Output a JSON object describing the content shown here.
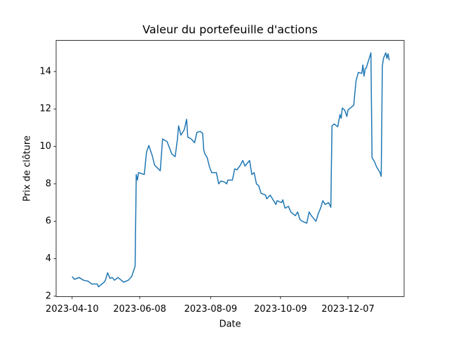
{
  "chart_data": {
    "type": "line",
    "title": "Valeur du portefeuille d'actions",
    "x_label": "Date",
    "y_label": "Prix de clôture",
    "color": "#1f77b4",
    "x": [
      "2023-04-10",
      "2023-04-12",
      "2023-04-16",
      "2023-04-20",
      "2023-04-24",
      "2023-04-27",
      "2023-05-02",
      "2023-05-03",
      "2023-05-08",
      "2023-05-09",
      "2023-05-11",
      "2023-05-13",
      "2023-05-15",
      "2023-05-17",
      "2023-05-20",
      "2023-05-25",
      "2023-05-29",
      "2023-06-01",
      "2023-06-04",
      "2023-06-05",
      "2023-06-06",
      "2023-06-07",
      "2023-06-12",
      "2023-06-14",
      "2023-06-16",
      "2023-06-19",
      "2023-06-21",
      "2023-06-26",
      "2023-06-28",
      "2023-07-02",
      "2023-07-06",
      "2023-07-09",
      "2023-07-11",
      "2023-07-12",
      "2023-07-14",
      "2023-07-17",
      "2023-07-19",
      "2023-07-20",
      "2023-07-23",
      "2023-07-26",
      "2023-07-28",
      "2023-07-31",
      "2023-08-02",
      "2023-08-03",
      "2023-08-04",
      "2023-08-06",
      "2023-08-08",
      "2023-08-10",
      "2023-08-14",
      "2023-08-16",
      "2023-08-18",
      "2023-08-21",
      "2023-08-23",
      "2023-08-24",
      "2023-08-28",
      "2023-08-30",
      "2023-09-01",
      "2023-09-04",
      "2023-09-06",
      "2023-09-08",
      "2023-09-10",
      "2023-09-12",
      "2023-09-14",
      "2023-09-16",
      "2023-09-18",
      "2023-09-20",
      "2023-09-22",
      "2023-09-26",
      "2023-09-27",
      "2023-09-30",
      "2023-10-02",
      "2023-10-05",
      "2023-10-06",
      "2023-10-10",
      "2023-10-11",
      "2023-10-13",
      "2023-10-16",
      "2023-10-18",
      "2023-10-22",
      "2023-10-24",
      "2023-10-26",
      "2023-10-28",
      "2023-11-01",
      "2023-11-03",
      "2023-11-05",
      "2023-11-09",
      "2023-11-11",
      "2023-11-13",
      "2023-11-15",
      "2023-11-17",
      "2023-11-20",
      "2023-11-22",
      "2023-11-23",
      "2023-11-25",
      "2023-11-28",
      "2023-11-30",
      "2023-12-01",
      "2023-12-02",
      "2023-12-04",
      "2023-12-06",
      "2023-12-07",
      "2023-12-12",
      "2023-12-14",
      "2023-12-16",
      "2023-12-19",
      "2023-12-20",
      "2023-12-21",
      "2023-12-22",
      "2023-12-23",
      "2023-12-27",
      "2023-12-28",
      "2023-12-30",
      "2024-01-01",
      "2024-01-04",
      "2024-01-05",
      "2024-01-06",
      "2024-01-07",
      "2024-01-09",
      "2024-01-10",
      "2024-01-11",
      "2024-01-12"
    ],
    "values": [
      3.05,
      2.9,
      3.0,
      2.85,
      2.8,
      2.65,
      2.65,
      2.5,
      2.75,
      2.85,
      3.25,
      2.95,
      3.0,
      2.85,
      3.0,
      2.75,
      2.85,
      3.05,
      3.6,
      8.5,
      8.2,
      8.6,
      8.5,
      9.7,
      10.05,
      9.5,
      9.0,
      8.7,
      10.4,
      10.25,
      9.6,
      9.45,
      10.4,
      11.1,
      10.6,
      10.9,
      11.45,
      10.5,
      10.4,
      10.2,
      10.75,
      10.8,
      10.7,
      9.8,
      9.6,
      9.4,
      8.9,
      8.6,
      8.6,
      8.0,
      8.15,
      8.1,
      8.0,
      8.2,
      8.2,
      8.8,
      8.75,
      9.0,
      9.25,
      8.95,
      9.1,
      9.25,
      8.5,
      8.6,
      8.0,
      7.9,
      7.5,
      7.4,
      7.2,
      7.4,
      7.2,
      6.9,
      7.1,
      7.0,
      7.15,
      6.7,
      6.8,
      6.5,
      6.3,
      6.5,
      6.1,
      6.0,
      5.9,
      6.5,
      6.3,
      6.0,
      6.4,
      6.7,
      7.1,
      6.9,
      7.0,
      6.75,
      11.1,
      11.2,
      11.05,
      11.7,
      11.5,
      12.05,
      11.95,
      11.6,
      11.95,
      12.2,
      13.5,
      13.95,
      13.9,
      14.35,
      13.75,
      14.15,
      14.2,
      15.0,
      9.4,
      9.2,
      8.9,
      8.6,
      8.4,
      14.3,
      14.7,
      15.0,
      14.7,
      14.95,
      14.6
    ],
    "xlim": [
      "2023-03-27",
      "2024-01-25"
    ],
    "xticks": [
      "2023-04-10",
      "2023-06-08",
      "2023-08-09",
      "2023-10-09",
      "2023-12-07"
    ],
    "ylim": [
      1.98,
      15.66
    ],
    "yticks": [
      2,
      4,
      6,
      8,
      10,
      12,
      14
    ]
  }
}
